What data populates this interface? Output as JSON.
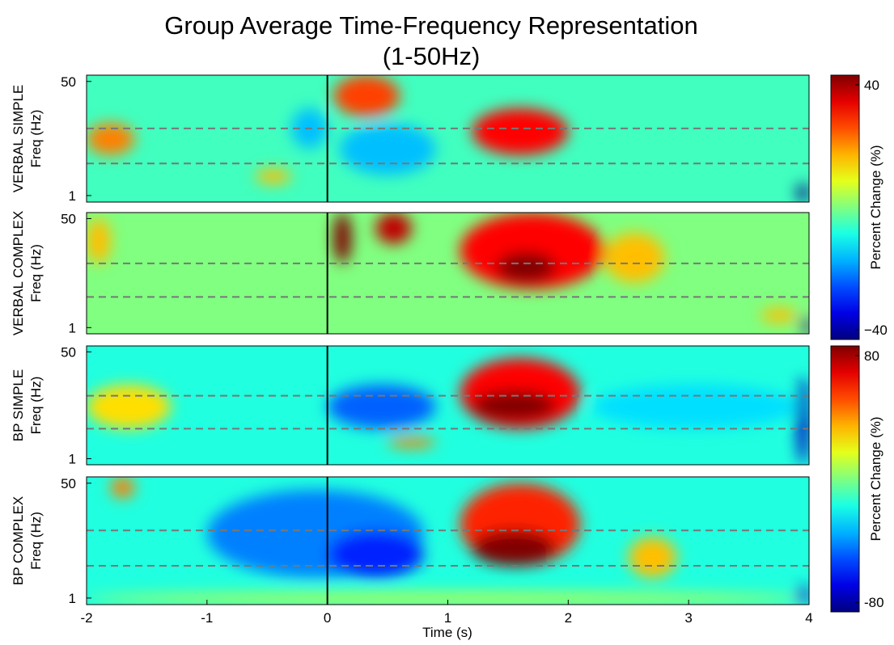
{
  "chart_data": {
    "type": "heatmap",
    "title": "Group Average Time-Frequency Representation",
    "subtitle": "(1-50Hz)",
    "xlabel": "Time (s)",
    "ylabel": "Freq (Hz)",
    "xlim": [
      -2,
      4
    ],
    "xticks": [
      -2,
      -1,
      0,
      1,
      2,
      3,
      4
    ],
    "ylim": [
      0.8,
      62
    ],
    "yticks": [
      1,
      50
    ],
    "ylog": true,
    "event_time": 0,
    "band_lines": [
      3,
      10
    ],
    "colorbars": [
      {
        "label": "Percent Change (%)",
        "clim": [
          -40,
          40
        ],
        "ticks": [
          40,
          {
            "value": -40,
            "label": "−40"
          }
        ],
        "panels": [
          {
            "name": "VERBAL SIMPLE",
            "background": -5,
            "regions": [
              {
                "t": [
                  1.2,
                  2.0
                ],
                "f": [
                  4,
                  20
                ],
                "value": 30
              },
              {
                "t": [
                  0.05,
                  0.6
                ],
                "f": [
                  15,
                  62
                ],
                "value": 25
              },
              {
                "t": [
                  -2,
                  -1.6
                ],
                "f": [
                  4,
                  12
                ],
                "value": 20
              },
              {
                "t": [
                  0.1,
                  0.9
                ],
                "f": [
                  2,
                  12
                ],
                "value": -15
              },
              {
                "t": [
                  -0.3,
                  0
                ],
                "f": [
                  5,
                  20
                ],
                "value": -15
              },
              {
                "t": [
                  -0.6,
                  -0.3
                ],
                "f": [
                  1.5,
                  2.5
                ],
                "value": 15
              },
              {
                "t": [
                  3.9,
                  4
                ],
                "f": [
                  0.8,
                  1.5
                ],
                "value": -40
              }
            ]
          },
          {
            "name": "VERBAL COMPLEX",
            "background": 0,
            "regions": [
              {
                "t": [
                  1.1,
                  2.3
                ],
                "f": [
                  4,
                  62
                ],
                "value": 30
              },
              {
                "t": [
                  1.4,
                  1.9
                ],
                "f": [
                  5,
                  15
                ],
                "value": 40
              },
              {
                "t": [
                  0.05,
                  0.2
                ],
                "f": [
                  10,
                  62
                ],
                "value": 40
              },
              {
                "t": [
                  0.4,
                  0.7
                ],
                "f": [
                  20,
                  62
                ],
                "value": 35
              },
              {
                "t": [
                  2.3,
                  2.8
                ],
                "f": [
                  5,
                  30
                ],
                "value": 15
              },
              {
                "t": [
                  -2,
                  -1.8
                ],
                "f": [
                  10,
                  50
                ],
                "value": 15
              },
              {
                "t": [
                  3.6,
                  3.9
                ],
                "f": [
                  1.2,
                  2
                ],
                "value": 15
              },
              {
                "t": [
                  3.95,
                  4
                ],
                "f": [
                  0.8,
                  1.5
                ],
                "value": -40
              }
            ]
          }
        ]
      },
      {
        "label": "Percent Change (%)",
        "clim": [
          -80,
          80
        ],
        "ticks": [
          80,
          {
            "value": -80,
            "label": "-80"
          }
        ],
        "panels": [
          {
            "name": "BP SIMPLE",
            "background": -15,
            "regions": [
              {
                "t": [
                  1.1,
                  2.1
                ],
                "f": [
                  3,
                  40
                ],
                "value": 60
              },
              {
                "t": [
                  1.2,
                  1.9
                ],
                "f": [
                  4,
                  12
                ],
                "value": 80
              },
              {
                "t": [
                  0,
                  0.9
                ],
                "f": [
                  3,
                  15
                ],
                "value": -45
              },
              {
                "t": [
                  -2,
                  -1.3
                ],
                "f": [
                  3,
                  15
                ],
                "value": 25
              },
              {
                "t": [
                  0.5,
                  0.9
                ],
                "f": [
                  1.5,
                  2.2
                ],
                "value": 40
              },
              {
                "t": [
                  2.2,
                  3.9
                ],
                "f": [
                  3,
                  15
                ],
                "value": -25
              },
              {
                "t": [
                  3.9,
                  4
                ],
                "f": [
                  0.8,
                  20
                ],
                "value": -70
              }
            ]
          },
          {
            "name": "BP COMPLEX",
            "background": -15,
            "regions": [
              {
                "t": [
                  1.1,
                  2.1
                ],
                "f": [
                  3,
                  50
                ],
                "value": 55
              },
              {
                "t": [
                  1.2,
                  1.9
                ],
                "f": [
                  3,
                  10
                ],
                "value": 80
              },
              {
                "t": [
                  -1,
                  0.8
                ],
                "f": [
                  2,
                  40
                ],
                "value": -40
              },
              {
                "t": [
                  0,
                  0.8
                ],
                "f": [
                  2,
                  10
                ],
                "value": -55
              },
              {
                "t": [
                  2.5,
                  2.9
                ],
                "f": [
                  2,
                  8
                ],
                "value": 30
              },
              {
                "t": [
                  -1.8,
                  -1.6
                ],
                "f": [
                  30,
                  62
                ],
                "value": 40
              },
              {
                "t": [
                  -2,
                  4
                ],
                "f": [
                  0.8,
                  1.2
                ],
                "value": 10
              },
              {
                "t": [
                  3.9,
                  4
                ],
                "f": [
                  0.8,
                  1.5
                ],
                "value": -70
              }
            ]
          }
        ]
      }
    ]
  }
}
